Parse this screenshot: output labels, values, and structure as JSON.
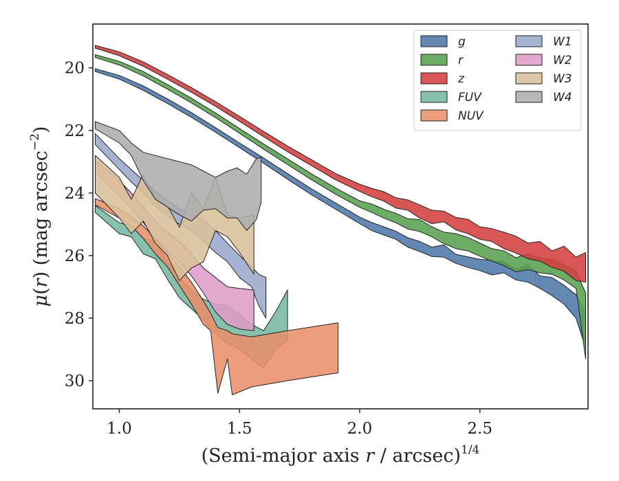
{
  "chart_data": {
    "type": "area",
    "xlabel": "(Semi-major axis r / arcsec)",
    "xlabel_parts": {
      "pre": "(Semi-major axis ",
      "var": "r",
      "post": " / arcsec)",
      "sup": "1/4"
    },
    "ylabel_parts": {
      "mu": "μ",
      "pre": "(",
      "var": "r",
      "post": ") (mag arcsec",
      "sup": "−2",
      "close": ")"
    },
    "xlim": [
      0.89,
      2.95
    ],
    "ylim": [
      30.9,
      18.6
    ],
    "y_inverted": true,
    "x_ticks": [
      1.0,
      1.5,
      2.0,
      2.5
    ],
    "x_tick_labels": [
      "1.0",
      "1.5",
      "2.0",
      "2.5"
    ],
    "y_ticks": [
      20,
      22,
      24,
      26,
      28,
      30
    ],
    "y_tick_labels": [
      "20",
      "22",
      "24",
      "26",
      "28",
      "30"
    ],
    "grid": false,
    "legend_position": "top-right",
    "legend_columns": 2,
    "series": [
      {
        "name": "g",
        "color": "#4C78A8",
        "points": [
          [
            0.9,
            20.03,
            20.12
          ],
          [
            1.0,
            20.24,
            20.36
          ],
          [
            1.1,
            20.58,
            20.72
          ],
          [
            1.2,
            20.99,
            21.14
          ],
          [
            1.3,
            21.43,
            21.58
          ],
          [
            1.4,
            21.91,
            22.06
          ],
          [
            1.5,
            22.4,
            22.55
          ],
          [
            1.6,
            22.88,
            23.05
          ],
          [
            1.7,
            23.38,
            23.56
          ],
          [
            1.8,
            23.87,
            24.06
          ],
          [
            1.9,
            24.32,
            24.52
          ],
          [
            2.0,
            24.77,
            24.98
          ],
          [
            2.05,
            24.94,
            25.2
          ],
          [
            2.1,
            25.08,
            25.34
          ],
          [
            2.15,
            25.22,
            25.48
          ],
          [
            2.2,
            25.43,
            25.73
          ],
          [
            2.25,
            25.55,
            25.87
          ],
          [
            2.3,
            25.73,
            26.03
          ],
          [
            2.35,
            25.66,
            26.05
          ],
          [
            2.4,
            25.96,
            26.25
          ],
          [
            2.45,
            26.04,
            26.38
          ],
          [
            2.5,
            26.12,
            26.48
          ],
          [
            2.55,
            26.15,
            26.62
          ],
          [
            2.6,
            26.2,
            26.55
          ],
          [
            2.65,
            26.44,
            26.78
          ],
          [
            2.7,
            26.28,
            26.85
          ],
          [
            2.75,
            26.65,
            27.05
          ],
          [
            2.8,
            26.7,
            27.28
          ],
          [
            2.85,
            26.95,
            27.55
          ],
          [
            2.9,
            27.25,
            28.0
          ],
          [
            2.94,
            27.8,
            28.95
          ]
        ]
      },
      {
        "name": "r",
        "color": "#59A14F",
        "points": [
          [
            0.9,
            19.58,
            19.67
          ],
          [
            1.0,
            19.79,
            19.91
          ],
          [
            1.1,
            20.12,
            20.26
          ],
          [
            1.2,
            20.53,
            20.68
          ],
          [
            1.3,
            20.97,
            21.12
          ],
          [
            1.4,
            21.44,
            21.59
          ],
          [
            1.5,
            21.94,
            22.09
          ],
          [
            1.6,
            22.43,
            22.6
          ],
          [
            1.7,
            22.91,
            23.09
          ],
          [
            1.8,
            23.39,
            23.58
          ],
          [
            1.9,
            23.84,
            24.04
          ],
          [
            2.0,
            24.25,
            24.46
          ],
          [
            2.05,
            24.35,
            24.62
          ],
          [
            2.1,
            24.52,
            24.8
          ],
          [
            2.15,
            24.65,
            24.95
          ],
          [
            2.2,
            24.82,
            25.15
          ],
          [
            2.25,
            24.85,
            25.23
          ],
          [
            2.3,
            25.08,
            25.4
          ],
          [
            2.35,
            25.25,
            25.62
          ],
          [
            2.4,
            25.3,
            25.78
          ],
          [
            2.45,
            25.42,
            25.85
          ],
          [
            2.5,
            25.6,
            26.02
          ],
          [
            2.55,
            25.78,
            26.18
          ],
          [
            2.6,
            25.85,
            26.32
          ],
          [
            2.65,
            26.07,
            26.52
          ],
          [
            2.7,
            25.95,
            26.45
          ],
          [
            2.75,
            26.08,
            26.55
          ],
          [
            2.8,
            26.12,
            26.6
          ],
          [
            2.85,
            26.3,
            26.78
          ],
          [
            2.9,
            26.5,
            27.05
          ],
          [
            2.94,
            27.2,
            29.3
          ]
        ]
      },
      {
        "name": "z",
        "color": "#D3403F",
        "points": [
          [
            0.9,
            19.28,
            19.37
          ],
          [
            1.0,
            19.49,
            19.61
          ],
          [
            1.1,
            19.81,
            19.95
          ],
          [
            1.2,
            20.21,
            20.36
          ],
          [
            1.3,
            20.63,
            20.78
          ],
          [
            1.4,
            21.08,
            21.23
          ],
          [
            1.5,
            21.55,
            21.71
          ],
          [
            1.6,
            22.03,
            22.2
          ],
          [
            1.7,
            22.5,
            22.68
          ],
          [
            1.8,
            22.94,
            23.13
          ],
          [
            1.9,
            23.38,
            23.58
          ],
          [
            2.0,
            23.72,
            23.95
          ],
          [
            2.05,
            23.85,
            24.12
          ],
          [
            2.1,
            23.96,
            24.26
          ],
          [
            2.15,
            24.15,
            24.48
          ],
          [
            2.2,
            24.22,
            24.55
          ],
          [
            2.25,
            24.38,
            24.8
          ],
          [
            2.3,
            24.55,
            24.98
          ],
          [
            2.35,
            24.58,
            24.92
          ],
          [
            2.4,
            24.78,
            25.18
          ],
          [
            2.45,
            24.84,
            25.3
          ],
          [
            2.5,
            25.08,
            25.48
          ],
          [
            2.55,
            25.14,
            25.55
          ],
          [
            2.6,
            25.25,
            25.78
          ],
          [
            2.65,
            25.38,
            25.92
          ],
          [
            2.7,
            25.6,
            26.1
          ],
          [
            2.75,
            25.55,
            26.18
          ],
          [
            2.8,
            25.85,
            26.38
          ],
          [
            2.85,
            25.7,
            26.5
          ],
          [
            2.9,
            26.05,
            26.8
          ],
          [
            2.94,
            25.9,
            26.85
          ]
        ]
      },
      {
        "name": "FUV",
        "color": "#76B7A0",
        "points": [
          [
            0.9,
            24.4,
            24.62
          ],
          [
            1.0,
            24.95,
            25.3
          ],
          [
            1.05,
            25.05,
            25.4
          ],
          [
            1.1,
            25.45,
            25.95
          ],
          [
            1.15,
            25.55,
            26.1
          ],
          [
            1.2,
            26.2,
            26.75
          ],
          [
            1.25,
            26.7,
            27.35
          ],
          [
            1.3,
            27.1,
            27.7
          ],
          [
            1.35,
            27.4,
            28.05
          ],
          [
            1.4,
            27.55,
            28.5
          ],
          [
            1.45,
            27.6,
            28.8
          ],
          [
            1.5,
            27.9,
            29.0
          ],
          [
            1.55,
            28.2,
            29.3
          ],
          [
            1.6,
            28.4,
            29.6
          ],
          [
            1.65,
            27.8,
            29.0
          ],
          [
            1.7,
            27.1,
            28.7
          ]
        ]
      },
      {
        "name": "NUV",
        "color": "#E8906A",
        "points": [
          [
            0.9,
            24.18,
            24.38
          ],
          [
            1.0,
            24.5,
            24.8
          ],
          [
            1.05,
            24.75,
            25.05
          ],
          [
            1.1,
            25.05,
            25.45
          ],
          [
            1.15,
            25.45,
            25.95
          ],
          [
            1.2,
            25.9,
            26.35
          ],
          [
            1.25,
            26.35,
            26.95
          ],
          [
            1.3,
            26.85,
            27.55
          ],
          [
            1.35,
            27.45,
            28.2
          ],
          [
            1.38,
            27.85,
            28.4
          ],
          [
            1.41,
            28.3,
            30.4
          ],
          [
            1.45,
            28.4,
            29.3
          ],
          [
            1.47,
            28.5,
            30.45
          ],
          [
            1.55,
            28.6,
            30.2
          ],
          [
            1.7,
            28.4,
            30.0
          ],
          [
            1.91,
            28.15,
            29.75
          ]
        ]
      },
      {
        "name": "W1",
        "color": "#9AA8CC",
        "points": [
          [
            0.9,
            22.1,
            22.45
          ],
          [
            1.0,
            22.9,
            23.25
          ],
          [
            1.05,
            23.25,
            23.65
          ],
          [
            1.1,
            23.6,
            24.0
          ],
          [
            1.15,
            23.95,
            24.4
          ],
          [
            1.2,
            24.25,
            24.75
          ],
          [
            1.25,
            24.5,
            25.0
          ],
          [
            1.3,
            24.7,
            25.2
          ],
          [
            1.35,
            24.85,
            25.55
          ],
          [
            1.4,
            25.2,
            25.9
          ],
          [
            1.45,
            25.6,
            26.2
          ],
          [
            1.5,
            26.0,
            26.7
          ],
          [
            1.55,
            26.35,
            27.0
          ],
          [
            1.58,
            26.6,
            27.6
          ],
          [
            1.61,
            26.7,
            28.0
          ]
        ]
      },
      {
        "name": "W2",
        "color": "#DE9CC8",
        "points": [
          [
            0.9,
            22.95,
            23.35
          ],
          [
            1.0,
            23.6,
            24.1
          ],
          [
            1.05,
            24.0,
            24.5
          ],
          [
            1.1,
            24.45,
            24.95
          ],
          [
            1.15,
            24.9,
            25.45
          ],
          [
            1.2,
            25.25,
            25.85
          ],
          [
            1.25,
            25.55,
            26.2
          ],
          [
            1.3,
            25.95,
            26.65
          ],
          [
            1.35,
            26.4,
            27.2
          ],
          [
            1.4,
            26.7,
            27.8
          ],
          [
            1.45,
            27.0,
            28.2
          ],
          [
            1.5,
            27.05,
            28.35
          ],
          [
            1.56,
            27.1,
            28.4
          ]
        ]
      },
      {
        "name": "W3",
        "color": "#DBC09A",
        "points": [
          [
            0.9,
            22.8,
            24.0
          ],
          [
            1.0,
            23.5,
            24.8
          ],
          [
            1.05,
            24.2,
            25.3
          ],
          [
            1.1,
            23.4,
            24.9
          ],
          [
            1.15,
            24.2,
            25.6
          ],
          [
            1.2,
            24.4,
            26.0
          ],
          [
            1.25,
            25.1,
            26.8
          ],
          [
            1.3,
            24.0,
            26.4
          ],
          [
            1.35,
            24.5,
            26.2
          ],
          [
            1.4,
            23.5,
            25.2
          ],
          [
            1.45,
            24.7,
            25.4
          ],
          [
            1.5,
            24.8,
            25.9
          ],
          [
            1.56,
            24.7,
            26.6
          ]
        ]
      },
      {
        "name": "W4",
        "color": "#ADADAD",
        "points": [
          [
            0.9,
            21.72,
            21.95
          ],
          [
            1.0,
            22.0,
            22.4
          ],
          [
            1.05,
            22.4,
            22.8
          ],
          [
            1.1,
            22.7,
            23.6
          ],
          [
            1.15,
            22.8,
            24.2
          ],
          [
            1.2,
            22.9,
            24.45
          ],
          [
            1.25,
            23.0,
            24.7
          ],
          [
            1.3,
            23.1,
            24.9
          ],
          [
            1.35,
            23.3,
            24.55
          ],
          [
            1.4,
            23.5,
            24.5
          ],
          [
            1.45,
            23.3,
            24.8
          ],
          [
            1.49,
            23.2,
            24.8
          ],
          [
            1.53,
            23.4,
            25.2
          ],
          [
            1.57,
            22.9,
            24.85
          ],
          [
            1.59,
            22.85,
            24.3
          ]
        ]
      }
    ]
  }
}
